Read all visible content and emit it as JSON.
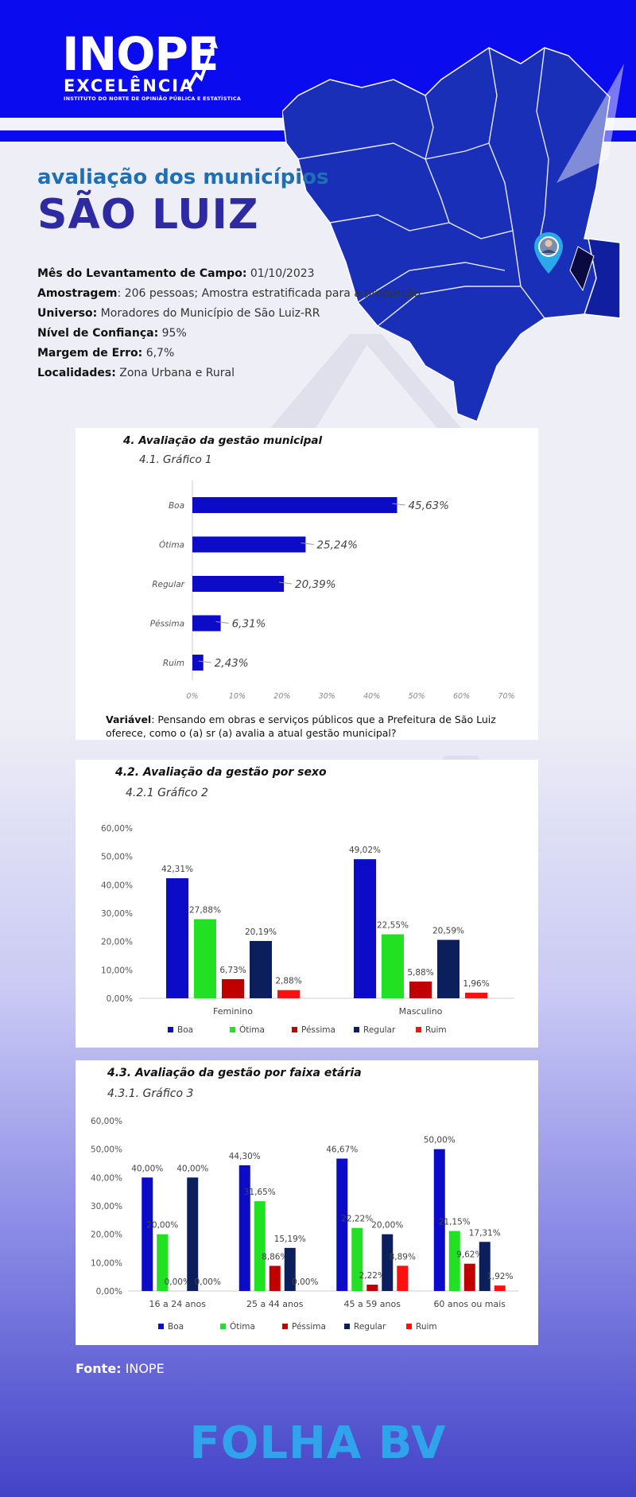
{
  "header": {
    "logo_main": "INOPE",
    "logo_sub": "EXCELÊNCIA",
    "logo_tag": "INSTITUTO DO NORTE DE OPINIÃO PÚBLICA E ESTATÍSTICA"
  },
  "title": {
    "subtitle": "avaliação dos municípios",
    "main": "SÃO LUIZ"
  },
  "info": [
    {
      "label": "Mês do Levantamento de Campo:",
      "value": " 01/10/2023"
    },
    {
      "label": "Amostragem",
      "value": ": 206 pessoas; Amostra estratificada para a proporção"
    },
    {
      "label": "Universo:",
      "value": " Moradores do Município de São Luiz-RR"
    },
    {
      "label": "Nível de Confiança:",
      "value": " 95%"
    },
    {
      "label": "Margem de Erro:",
      "value": " 6,7%"
    },
    {
      "label": "Localidades:",
      "value": " Zona Urbana e Rural"
    }
  ],
  "chart_data": [
    {
      "type": "bar",
      "orientation": "horizontal",
      "section_title": "4.  Avaliação da gestão municipal",
      "subtitle": "4.1.  Gráfico 1",
      "categories": [
        "Boa",
        "Ótima",
        "Regular",
        "Péssima",
        "Ruim"
      ],
      "values": [
        45.63,
        25.24,
        20.39,
        6.31,
        2.43
      ],
      "value_labels": [
        "45,63%",
        "25,24%",
        "20,39%",
        "6,31%",
        "2,43%"
      ],
      "x_ticks": [
        "0%",
        "10%",
        "20%",
        "30%",
        "40%",
        "50%",
        "60%",
        "70%"
      ],
      "xlim": [
        0,
        70
      ],
      "color": "#0c0cc8",
      "note_label": "Variável",
      "note_text": ": Pensando em obras e serviços públicos que a Prefeitura de São Luiz oferece, como o (a) sr (a) avalia a atual gestão municipal?"
    },
    {
      "type": "bar",
      "section_title": "4.2.   Avaliação da gestão por sexo",
      "subtitle": "4.2.1   Gráfico 2",
      "categories": [
        "Feminino",
        "Masculino"
      ],
      "ylim": [
        0,
        60
      ],
      "y_ticks": [
        "0,00%",
        "10,00%",
        "20,00%",
        "30,00%",
        "40,00%",
        "50,00%",
        "60,00%"
      ],
      "series": [
        {
          "name": "Boa",
          "color": "#0c0cc8",
          "values": [
            42.31,
            49.02
          ],
          "labels": [
            "42,31%",
            "49,02%"
          ]
        },
        {
          "name": "Ótima",
          "color": "#22e022",
          "values": [
            27.88,
            22.55
          ],
          "labels": [
            "27,88%",
            "22,55%"
          ]
        },
        {
          "name": "Péssima",
          "color": "#c00000",
          "values": [
            6.73,
            5.88
          ],
          "labels": [
            "6,73%",
            "5,88%"
          ]
        },
        {
          "name": "Regular",
          "color": "#0a1f5c",
          "values": [
            20.19,
            20.59
          ],
          "labels": [
            "20,19%",
            "20,59%"
          ]
        },
        {
          "name": "Ruim",
          "color": "#ff1010",
          "values": [
            2.88,
            1.96
          ],
          "labels": [
            "2,88%",
            "1,96%"
          ]
        }
      ]
    },
    {
      "type": "bar",
      "section_title": "4.3.   Avaliação da gestão por faixa etária",
      "subtitle": "4.3.1.     Gráfico 3",
      "categories": [
        "16 a 24 anos",
        "25 a 44 anos",
        "45 a 59 anos",
        "60 anos ou mais"
      ],
      "ylim": [
        0,
        60
      ],
      "y_ticks": [
        "0,00%",
        "10,00%",
        "20,00%",
        "30,00%",
        "40,00%",
        "50,00%",
        "60,00%"
      ],
      "series": [
        {
          "name": "Boa",
          "color": "#0c0cc8",
          "values": [
            40.0,
            44.3,
            46.67,
            50.0
          ],
          "labels": [
            "40,00%",
            "44,30%",
            "46,67%",
            "50,00%"
          ]
        },
        {
          "name": "Ótima",
          "color": "#22e022",
          "values": [
            20.0,
            31.65,
            22.22,
            21.15
          ],
          "labels": [
            "20,00%",
            "31,65%",
            "22,22%",
            "21,15%"
          ]
        },
        {
          "name": "Péssima",
          "color": "#c00000",
          "values": [
            0.0,
            8.86,
            2.22,
            9.62
          ],
          "labels": [
            "0,00%",
            "8,86%",
            "2,22%",
            "9,62%"
          ]
        },
        {
          "name": "Regular",
          "color": "#0a1f5c",
          "values": [
            40.0,
            15.19,
            20.0,
            17.31
          ],
          "labels": [
            "40,00%",
            "15,19%",
            "20,00%",
            "17,31%"
          ]
        },
        {
          "name": "Ruim",
          "color": "#ff1010",
          "values": [
            0.0,
            0.0,
            8.89,
            1.92
          ],
          "labels": [
            "0,00%",
            "0,00%",
            "8,89%",
            "1,92%"
          ]
        }
      ]
    }
  ],
  "source": {
    "label": "Fonte:",
    "value": " INOPE"
  },
  "footer": "FOLHA BV"
}
